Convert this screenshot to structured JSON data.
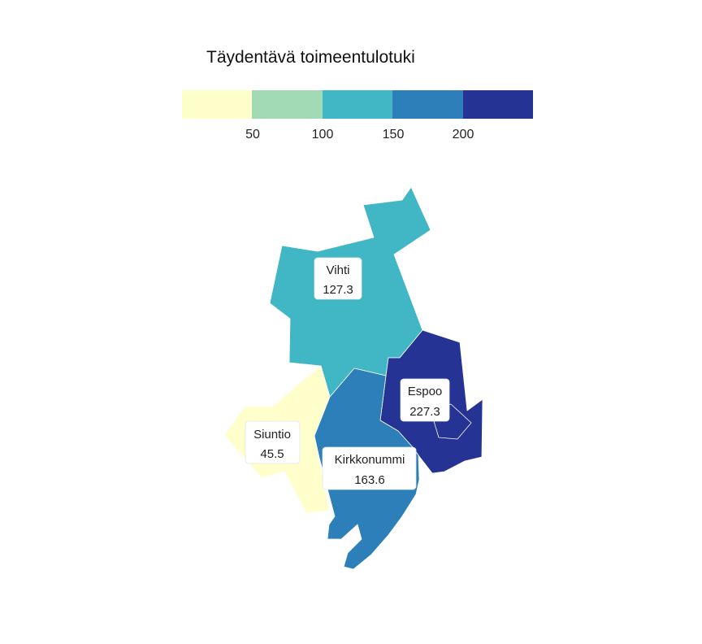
{
  "map": {
    "title": "Täydentävä toimeentulotuki",
    "legend": {
      "bins": [
        {
          "from": 0,
          "to": 50,
          "color": "#ffffcc"
        },
        {
          "from": 50,
          "to": 100,
          "color": "#a1dab4"
        },
        {
          "from": 100,
          "to": 150,
          "color": "#41b6c4"
        },
        {
          "from": 150,
          "to": 200,
          "color": "#2c7fb8"
        },
        {
          "from": 200,
          "to": 250,
          "color": "#253494"
        }
      ],
      "ticks": [
        "50",
        "100",
        "150",
        "200"
      ]
    },
    "regions": [
      {
        "name": "Vihti",
        "value": "127.3",
        "color": "#41b6c4"
      },
      {
        "name": "Espoo",
        "value": "227.3",
        "color": "#253494"
      },
      {
        "name": "Siuntio",
        "value": "45.5",
        "color": "#ffffcc"
      },
      {
        "name": "Kirkkonummi",
        "value": "163.6",
        "color": "#2c7fb8"
      }
    ]
  }
}
